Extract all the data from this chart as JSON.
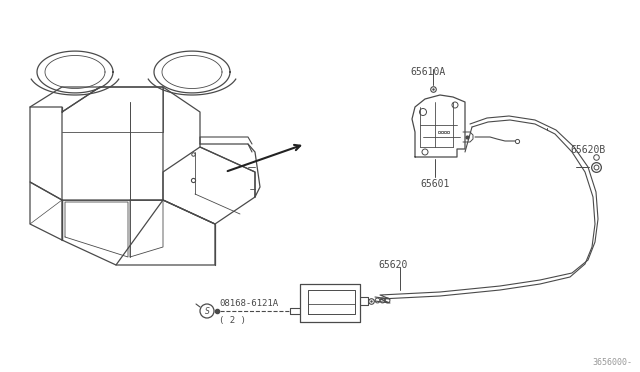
{
  "bg_color": "#ffffff",
  "line_color": "#4a4a4a",
  "text_color": "#4a4a4a",
  "diagram_number": "3656000-",
  "labels": {
    "bolt": "08168-6121A",
    "bolt2": "( 2 )",
    "cable": "65620",
    "latch": "65601",
    "cable_end": "65620B",
    "striker": "65610A"
  },
  "figsize": [
    6.4,
    3.72
  ],
  "dpi": 100
}
